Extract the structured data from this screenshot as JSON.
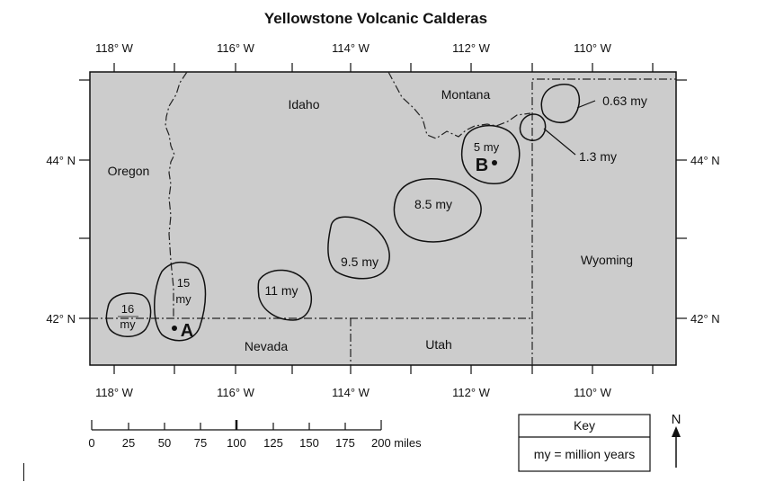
{
  "title": "Yellowstone Volcanic Calderas",
  "longitudes": [
    "118° W",
    "116° W",
    "114° W",
    "112° W",
    "110° W"
  ],
  "latitudes": [
    "44° N",
    "42° N"
  ],
  "states": [
    "Idaho",
    "Montana",
    "Oregon",
    "Wyoming",
    "Nevada",
    "Utah"
  ],
  "calderas": [
    {
      "age": "16",
      "unit": "my"
    },
    {
      "age": "15",
      "unit": "my"
    },
    {
      "age": "11 my"
    },
    {
      "age": "9.5 my"
    },
    {
      "age": "8.5 my"
    },
    {
      "age": "5 my"
    },
    {
      "age": "1.3 my"
    },
    {
      "age": "0.63 my"
    }
  ],
  "points": [
    "A",
    "B"
  ],
  "scale": {
    "ticks": [
      "0",
      "25",
      "50",
      "75",
      "100",
      "125",
      "150",
      "175",
      "200 miles"
    ]
  },
  "key": {
    "title": "Key",
    "text": "my = million years"
  },
  "north": "N"
}
